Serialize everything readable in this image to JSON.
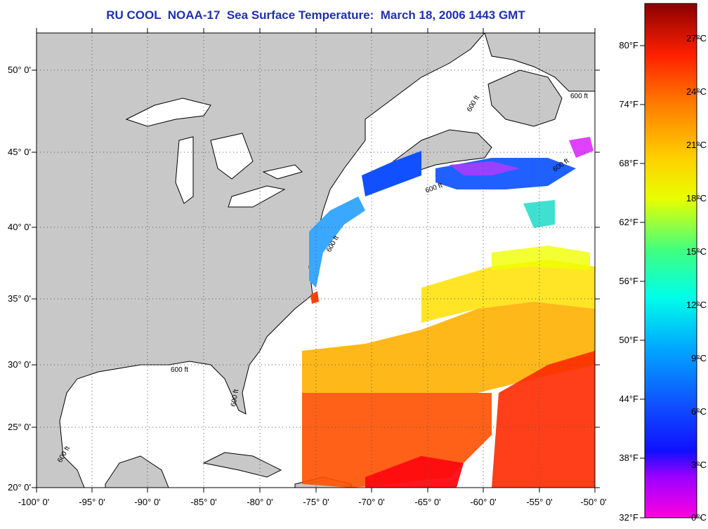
{
  "title": "RU COOL  NOAA-17  Sea Surface Temperature:  March 18, 2006 1443 GMT",
  "longitude_ticks": [
    "-100° 0'",
    "-95° 0'",
    "-90° 0'",
    "-85° 0'",
    "-80° 0'",
    "-75° 0'",
    "-70° 0'",
    "-65° 0'",
    "-60° 0'",
    "-55° 0'",
    "-50° 0'"
  ],
  "latitude_ticks": [
    "50° 0'",
    "45° 0'",
    "40° 0'",
    "35° 0'",
    "30° 0'",
    "25° 0'",
    "20° 0'"
  ],
  "colorbar_fahrenheit": [
    "80°F",
    "74°F",
    "68°F",
    "62°F",
    "56°F",
    "50°F",
    "44°F",
    "38°F",
    "32°F"
  ],
  "colorbar_celsius": [
    "27°C",
    "24°C",
    "21°C",
    "18°C",
    "15°C",
    "12°C",
    "9°C",
    "6°C",
    "3°C",
    "0°C"
  ],
  "isobath_labels": [
    "600 ft",
    "600 ft",
    "600 ft",
    "600 ft",
    "600 ft",
    "600 ft",
    "600 ft",
    "600 ft"
  ],
  "colors": {
    "land": "#c8c8c8",
    "ocean_cloud": "#ffffff",
    "title": "#1f2fb0"
  }
}
